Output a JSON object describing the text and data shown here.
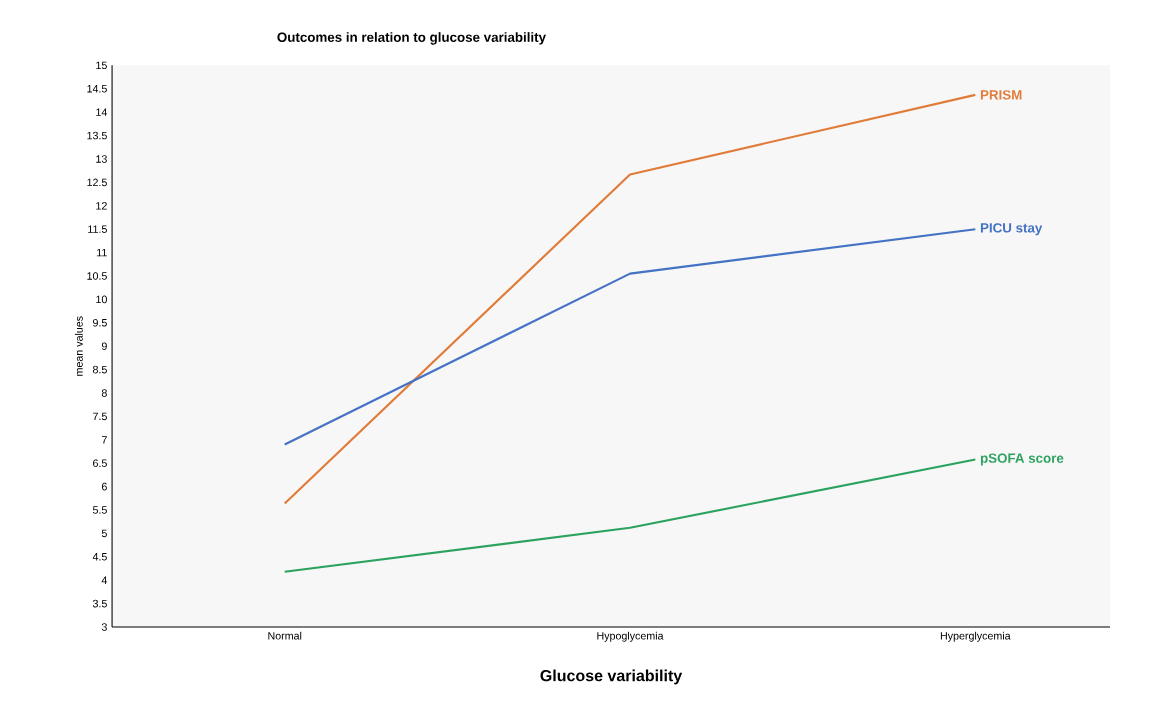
{
  "chart_data": {
    "type": "line",
    "title": "Outcomes in relation to glucose variability",
    "xlabel": "Glucose variability",
    "ylabel": "mean values",
    "categories": [
      "Normal",
      "Hypoglycemia",
      "Hyperglycemia"
    ],
    "series": [
      {
        "name": "PRISM",
        "color": "#e07b39",
        "values": [
          5.64,
          12.67,
          14.37
        ]
      },
      {
        "name": "PICU stay",
        "color": "#4472c4",
        "values": [
          6.9,
          10.55,
          11.5
        ]
      },
      {
        "name": "pSOFA score",
        "color": "#2ca25f",
        "values": [
          4.18,
          5.12,
          6.58
        ]
      }
    ],
    "ylim": [
      3,
      15
    ],
    "yticks": [
      3,
      3.5,
      4,
      4.5,
      5,
      5.5,
      6,
      6.5,
      7,
      7.5,
      8,
      8.5,
      9,
      9.5,
      10,
      10.5,
      11,
      11.5,
      12,
      12.5,
      13,
      13.5,
      14,
      14.5,
      15
    ],
    "marker": "none",
    "line_style": "solid"
  }
}
